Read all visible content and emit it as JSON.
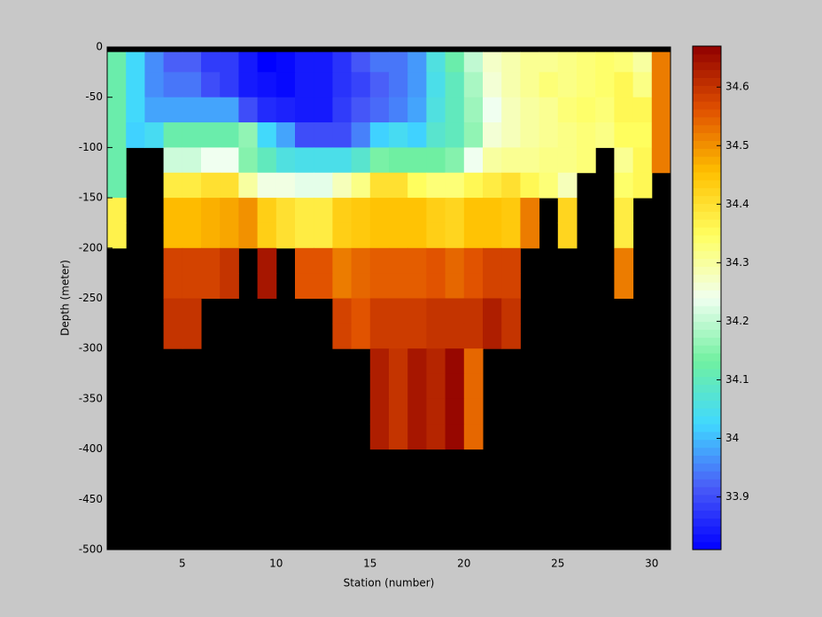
{
  "chart_data": {
    "type": "heatmap",
    "xlabel": "Station (number)",
    "ylabel": "Depth (meter)",
    "x": [
      1,
      2,
      3,
      4,
      5,
      6,
      7,
      8,
      9,
      10,
      11,
      12,
      13,
      14,
      15,
      16,
      17,
      18,
      19,
      20,
      21,
      22,
      23,
      24,
      25,
      26,
      27,
      28,
      29,
      30,
      31
    ],
    "y": [
      -5,
      -25,
      -50,
      -75,
      -100,
      -125,
      -150,
      -175,
      -200,
      -225,
      -250,
      -275,
      -300,
      -325,
      -350,
      -375,
      -400,
      -425,
      -450,
      -475,
      -500
    ],
    "xlim": [
      1,
      31
    ],
    "ylim": [
      -500,
      0
    ],
    "xticks": [
      5,
      10,
      15,
      20,
      25,
      30
    ],
    "yticks": [
      0,
      -50,
      -100,
      -150,
      -200,
      -250,
      -300,
      -350,
      -400,
      -450,
      -500
    ],
    "clim": [
      33.81,
      34.67
    ],
    "cticks": [
      33.9,
      34,
      34.1,
      34.2,
      34.3,
      34.4,
      34.5,
      34.6
    ],
    "colormap": [
      "#0000ff",
      "#4a5cf8",
      "#40d8ff",
      "#70f0a0",
      "#f0fff0",
      "#ffff60",
      "#ffc000",
      "#e05000",
      "#900000"
    ],
    "z": [
      [
        34.12,
        34.03,
        33.96,
        33.92,
        33.92,
        33.88,
        33.88,
        33.84,
        33.81,
        33.82,
        33.84,
        33.84,
        33.87,
        33.91,
        33.94,
        33.94,
        33.97,
        34.06,
        34.12,
        34.2,
        34.27,
        34.29,
        34.31,
        34.31,
        34.32,
        34.33,
        34.34,
        34.33,
        34.3,
        34.52
      ],
      [
        34.12,
        34.03,
        33.96,
        33.94,
        33.94,
        33.9,
        33.88,
        33.84,
        33.83,
        33.82,
        33.84,
        33.84,
        33.87,
        33.89,
        33.92,
        33.94,
        33.97,
        34.05,
        34.1,
        34.18,
        34.26,
        34.29,
        34.31,
        34.33,
        34.32,
        34.33,
        34.34,
        34.36,
        34.32,
        34.52
      ],
      [
        34.12,
        34.03,
        33.98,
        33.98,
        33.98,
        33.98,
        33.98,
        33.9,
        33.86,
        33.85,
        33.84,
        33.84,
        33.88,
        33.91,
        33.93,
        33.95,
        33.98,
        34.06,
        34.1,
        34.17,
        34.24,
        34.28,
        34.3,
        34.31,
        34.33,
        34.34,
        34.33,
        34.36,
        34.36,
        34.52
      ],
      [
        34.12,
        34.02,
        34.04,
        34.12,
        34.12,
        34.12,
        34.12,
        34.16,
        34.03,
        33.98,
        33.9,
        33.9,
        33.9,
        33.95,
        34.02,
        34.04,
        34.02,
        34.08,
        34.1,
        34.16,
        34.26,
        34.28,
        34.3,
        34.31,
        34.32,
        34.33,
        34.32,
        34.35,
        34.35,
        34.52
      ],
      [
        34.12,
        null,
        null,
        34.21,
        34.21,
        34.24,
        34.24,
        34.15,
        34.1,
        34.06,
        34.05,
        34.05,
        34.05,
        34.08,
        34.14,
        34.13,
        34.13,
        34.13,
        34.15,
        34.24,
        34.3,
        34.31,
        34.31,
        34.32,
        34.32,
        34.33,
        null,
        34.31,
        34.36,
        34.52
      ],
      [
        34.12,
        null,
        null,
        34.38,
        34.38,
        34.4,
        34.4,
        34.3,
        34.25,
        34.25,
        34.23,
        34.23,
        34.28,
        34.32,
        34.4,
        34.4,
        34.35,
        34.33,
        34.33,
        34.36,
        34.38,
        34.4,
        34.36,
        34.33,
        34.28,
        null,
        null,
        34.34,
        34.36,
        null
      ],
      [
        34.37,
        null,
        null,
        34.46,
        34.46,
        34.47,
        34.48,
        34.5,
        34.43,
        34.4,
        34.38,
        34.38,
        34.43,
        34.44,
        34.45,
        34.45,
        34.45,
        34.43,
        34.42,
        34.45,
        34.45,
        34.44,
        34.52,
        null,
        34.42,
        null,
        null,
        34.38,
        null,
        null
      ],
      [
        34.37,
        null,
        null,
        34.46,
        34.46,
        34.47,
        34.48,
        34.5,
        34.43,
        34.4,
        34.38,
        34.38,
        34.43,
        34.44,
        34.45,
        34.45,
        34.45,
        34.43,
        34.42,
        34.45,
        34.45,
        34.44,
        34.52,
        null,
        34.42,
        null,
        null,
        34.38,
        null,
        null
      ],
      [
        null,
        null,
        null,
        34.58,
        34.58,
        34.58,
        34.6,
        null,
        34.64,
        null,
        34.56,
        34.56,
        34.52,
        34.54,
        34.55,
        34.55,
        34.55,
        34.56,
        34.54,
        34.56,
        34.58,
        34.58,
        null,
        null,
        null,
        null,
        null,
        34.52,
        null,
        null
      ],
      [
        null,
        null,
        null,
        34.58,
        34.58,
        34.58,
        34.6,
        null,
        34.64,
        null,
        34.56,
        34.56,
        34.52,
        34.54,
        34.55,
        34.55,
        34.55,
        34.56,
        34.54,
        34.56,
        34.58,
        34.58,
        null,
        null,
        null,
        null,
        null,
        34.52,
        null,
        null
      ],
      [
        null,
        null,
        null,
        34.6,
        34.6,
        null,
        null,
        null,
        null,
        null,
        null,
        null,
        34.58,
        34.56,
        34.59,
        34.59,
        34.59,
        34.6,
        34.6,
        34.6,
        34.63,
        34.6,
        null,
        null,
        null,
        null,
        null,
        null,
        null,
        null
      ],
      [
        null,
        null,
        null,
        34.6,
        34.6,
        null,
        null,
        null,
        null,
        null,
        null,
        null,
        34.58,
        34.56,
        34.59,
        34.59,
        34.59,
        34.6,
        34.6,
        34.6,
        34.63,
        34.6,
        null,
        null,
        null,
        null,
        null,
        null,
        null,
        null
      ],
      [
        null,
        null,
        null,
        null,
        null,
        null,
        null,
        null,
        null,
        null,
        null,
        null,
        null,
        null,
        34.63,
        34.6,
        34.64,
        34.62,
        34.66,
        34.54,
        null,
        null,
        null,
        null,
        null,
        null,
        null,
        null,
        null,
        null
      ],
      [
        null,
        null,
        null,
        null,
        null,
        null,
        null,
        null,
        null,
        null,
        null,
        null,
        null,
        null,
        34.63,
        34.6,
        34.64,
        34.62,
        34.66,
        34.54,
        null,
        null,
        null,
        null,
        null,
        null,
        null,
        null,
        null,
        null
      ],
      [
        null,
        null,
        null,
        null,
        null,
        null,
        null,
        null,
        null,
        null,
        null,
        null,
        null,
        null,
        34.63,
        34.6,
        34.64,
        34.62,
        34.66,
        34.54,
        null,
        null,
        null,
        null,
        null,
        null,
        null,
        null,
        null,
        null
      ],
      [
        null,
        null,
        null,
        null,
        null,
        null,
        null,
        null,
        null,
        null,
        null,
        null,
        null,
        null,
        34.63,
        34.6,
        34.64,
        34.62,
        34.66,
        34.54,
        null,
        null,
        null,
        null,
        null,
        null,
        null,
        null,
        null,
        null
      ],
      [
        null,
        null,
        null,
        null,
        null,
        null,
        null,
        null,
        null,
        null,
        null,
        null,
        null,
        null,
        null,
        null,
        null,
        null,
        null,
        null,
        null,
        null,
        null,
        null,
        null,
        null,
        null,
        null,
        null,
        null
      ],
      [
        null,
        null,
        null,
        null,
        null,
        null,
        null,
        null,
        null,
        null,
        null,
        null,
        null,
        null,
        null,
        null,
        null,
        null,
        null,
        null,
        null,
        null,
        null,
        null,
        null,
        null,
        null,
        null,
        null,
        null
      ],
      [
        null,
        null,
        null,
        null,
        null,
        null,
        null,
        null,
        null,
        null,
        null,
        null,
        null,
        null,
        null,
        null,
        null,
        null,
        null,
        null,
        null,
        null,
        null,
        null,
        null,
        null,
        null,
        null,
        null,
        null
      ],
      [
        null,
        null,
        null,
        null,
        null,
        null,
        null,
        null,
        null,
        null,
        null,
        null,
        null,
        null,
        null,
        null,
        null,
        null,
        null,
        null,
        null,
        null,
        null,
        null,
        null,
        null,
        null,
        null,
        null,
        null
      ]
    ]
  }
}
